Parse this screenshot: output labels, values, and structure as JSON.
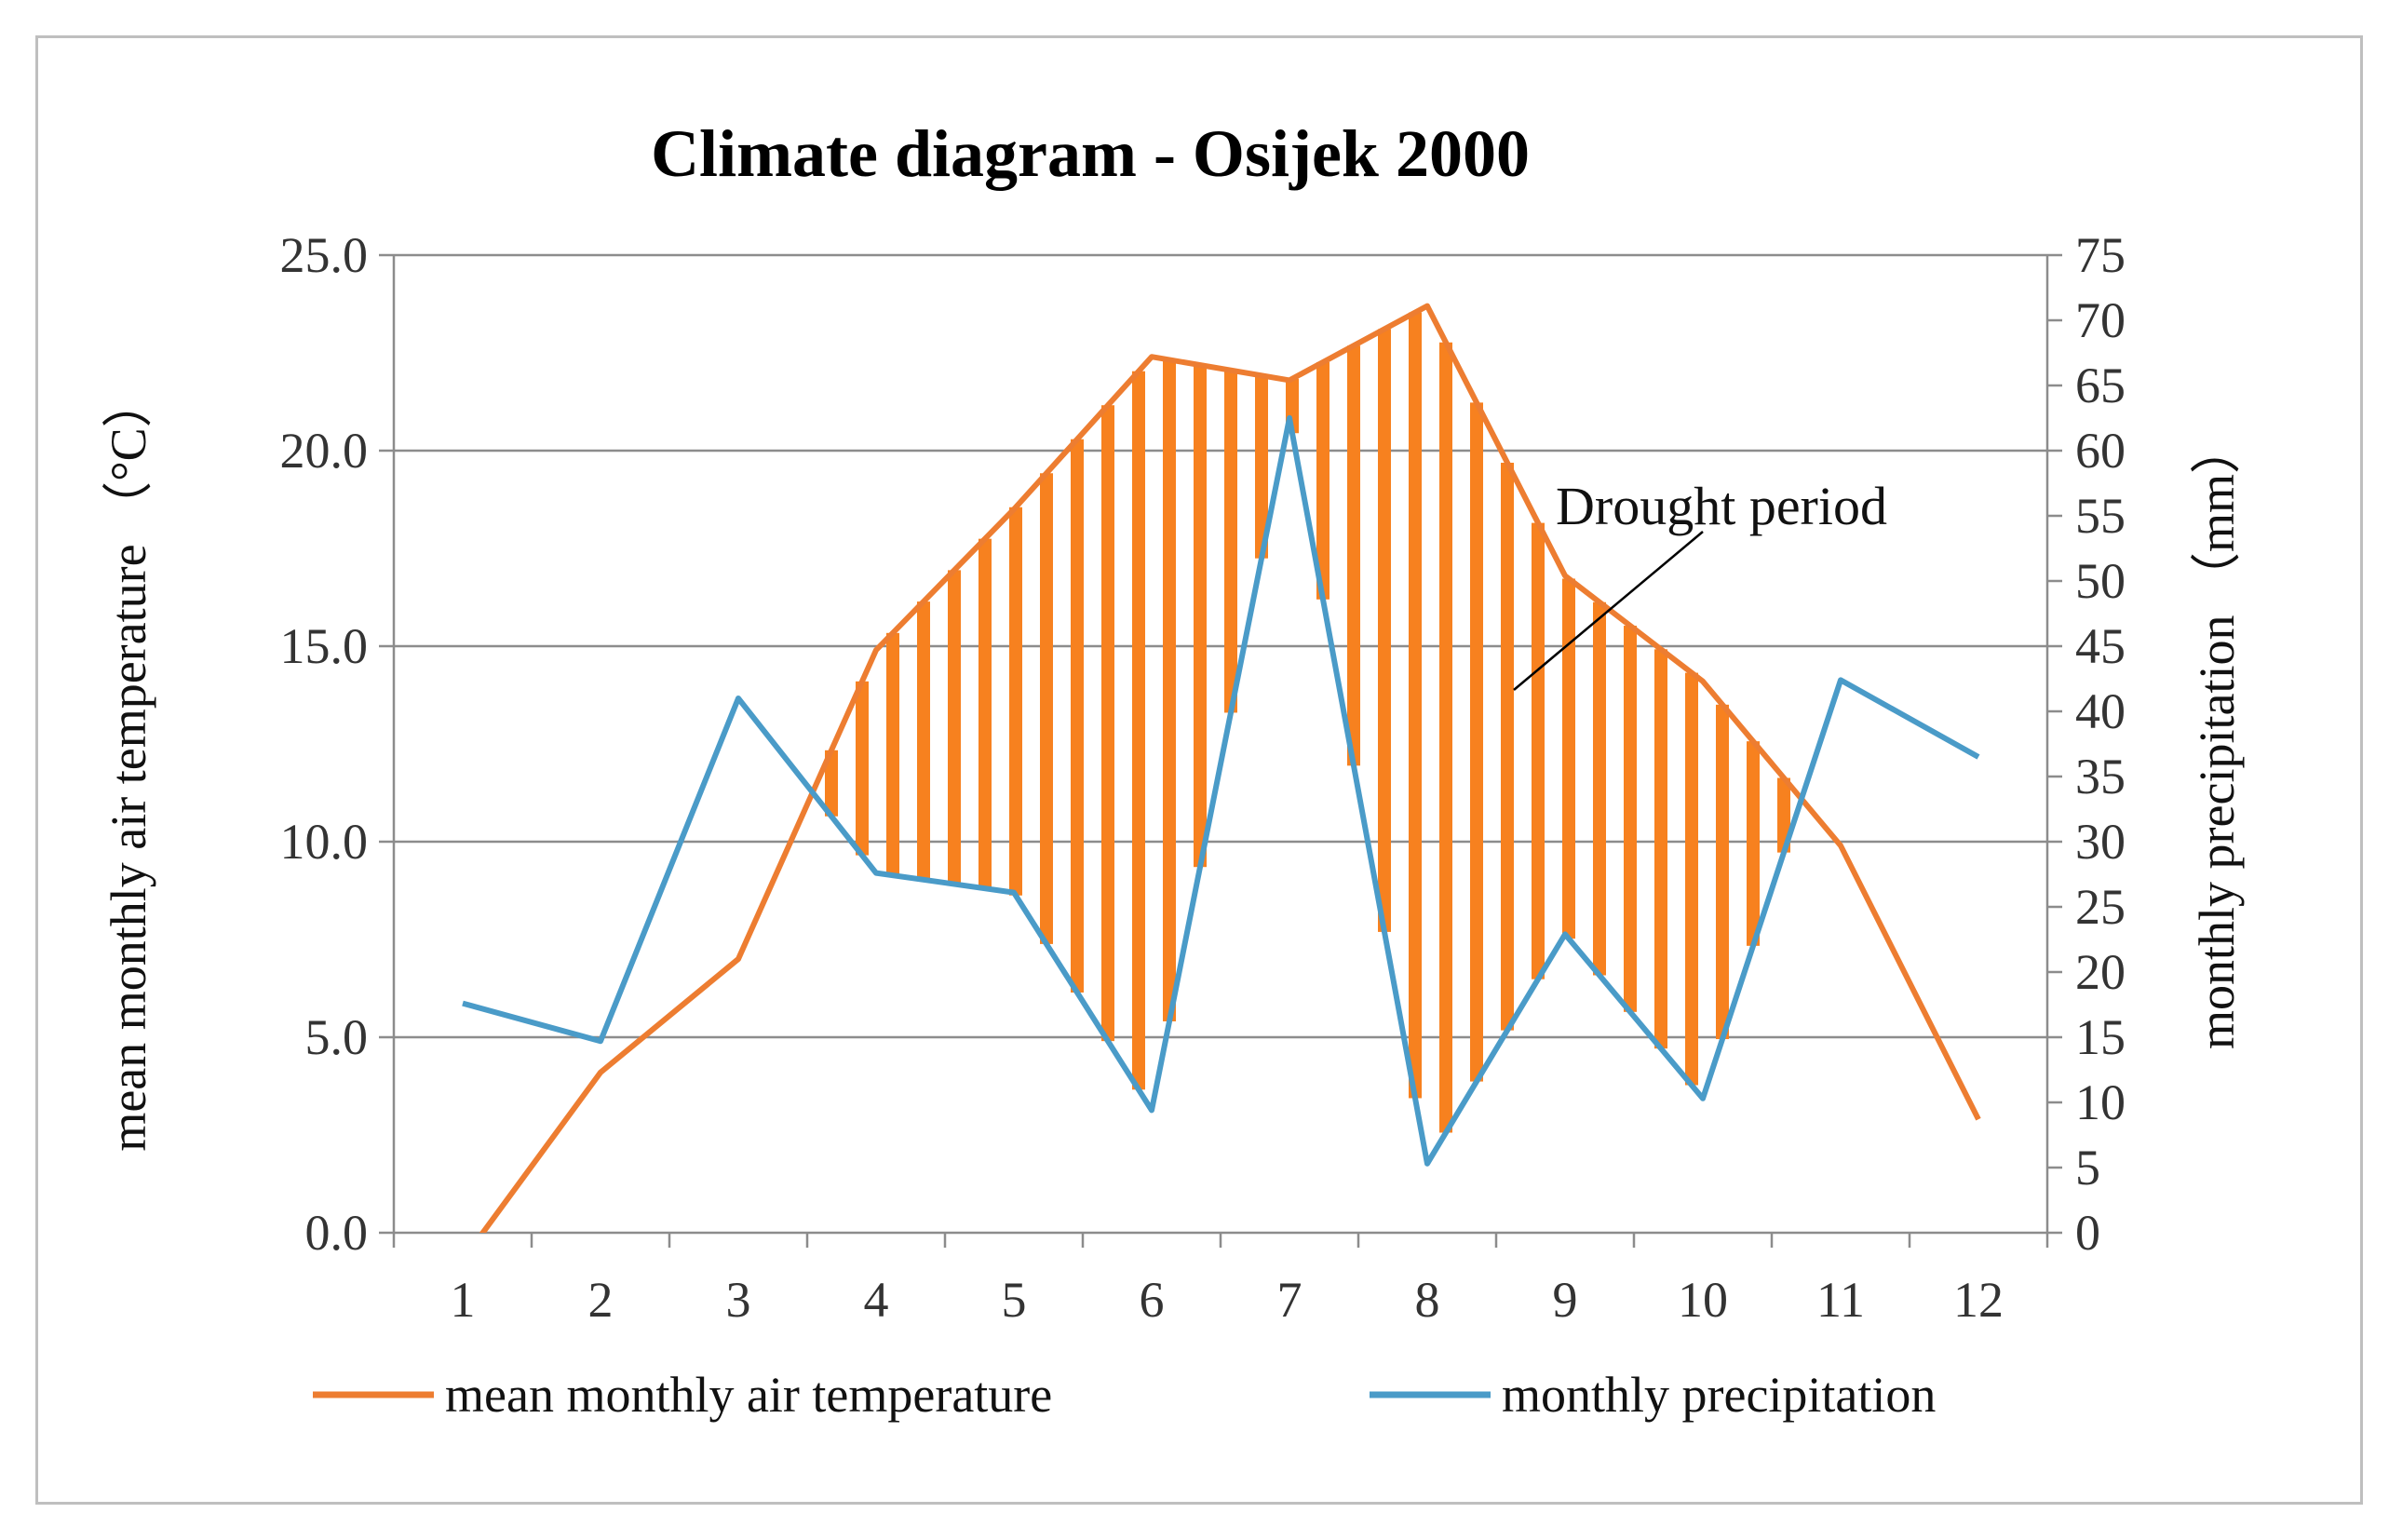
{
  "chart_data": {
    "type": "line",
    "title": "Climate diagram - Osijek 2000",
    "categories": [
      "1",
      "2",
      "3",
      "4",
      "5",
      "6",
      "7",
      "8",
      "9",
      "10",
      "11",
      "12"
    ],
    "xlabel": "",
    "y_left": {
      "label": "mean monthly air temperature （°C）",
      "lim": [
        0,
        25
      ],
      "ticks": [
        "0.0",
        "5.0",
        "10.0",
        "15.0",
        "20.0",
        "25.0"
      ]
    },
    "y_right": {
      "label": "monthly precipitation （mm）",
      "lim": [
        0,
        75
      ],
      "ticks": [
        "0",
        "5",
        "10",
        "15",
        "20",
        "25",
        "30",
        "35",
        "40",
        "45",
        "50",
        "55",
        "60",
        "65",
        "70",
        "75"
      ]
    },
    "series": [
      {
        "name": "mean monthly air temperature",
        "axis": "left",
        "color": "#ED7D31",
        "values": [
          -0.7,
          4.1,
          7.0,
          14.9,
          18.5,
          22.4,
          21.8,
          23.7,
          16.8,
          14.1,
          9.9,
          2.9
        ]
      },
      {
        "name": "monthly precipitation",
        "axis": "right",
        "color": "#4A9BC8",
        "values": [
          17.6,
          14.7,
          41.0,
          27.6,
          26.1,
          9.4,
          62.5,
          5.3,
          22.9,
          10.3,
          42.4,
          36.5
        ]
      }
    ],
    "fill": {
      "label": "Drought period",
      "color": "#F7811F"
    },
    "annotations": [
      {
        "text": "Drought period"
      }
    ],
    "legend_position": "bottom",
    "grid": true
  }
}
